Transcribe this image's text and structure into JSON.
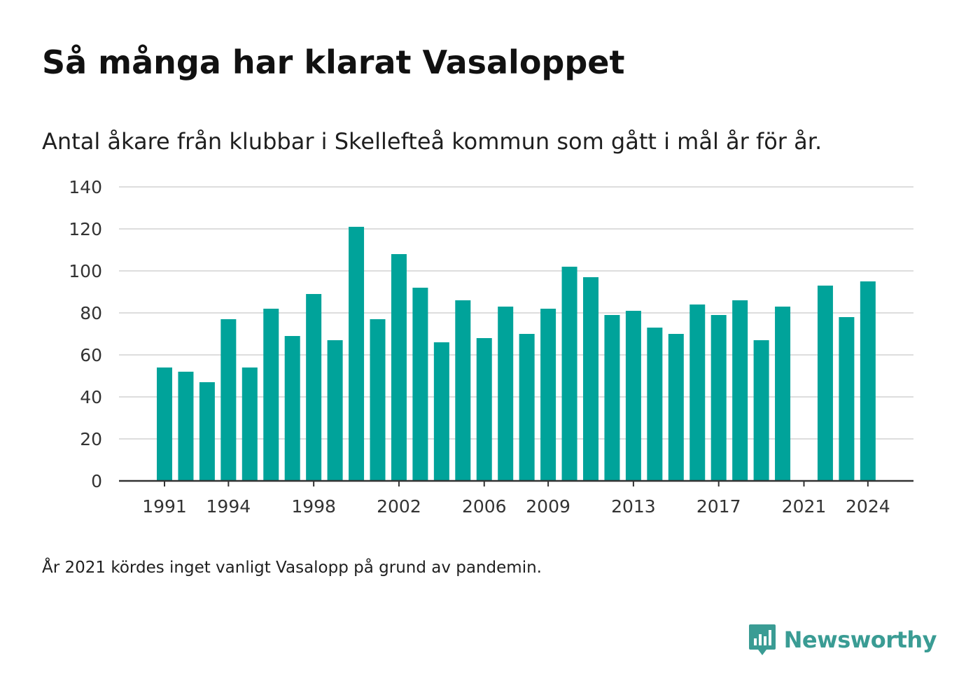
{
  "header": {
    "title": "Så många har klarat Vasaloppet",
    "subtitle": "Antal åkare från klubbar i Skellefteå kommun som gått i mål år för år."
  },
  "footnote": "År 2021 kördes inget vanligt Vasalopp på grund av pandemin.",
  "brand": {
    "name": "Newsworthy",
    "icon": "newsworthy-logo-icon",
    "color": "#3a9c94"
  },
  "colors": {
    "bar": "#00a39a",
    "grid": "#dddddd",
    "axis": "#333333",
    "tick_text": "#333333"
  },
  "chart_data": {
    "type": "bar",
    "title": "",
    "xlabel": "",
    "ylabel": "",
    "ylim": [
      0,
      140
    ],
    "yticks": [
      0,
      20,
      40,
      60,
      80,
      100,
      120,
      140
    ],
    "grid": true,
    "legend": "none",
    "categories": [
      "1991",
      "1992",
      "1993",
      "1994",
      "1995",
      "1996",
      "1997",
      "1998",
      "1999",
      "2000",
      "2001",
      "2002",
      "2003",
      "2004",
      "2005",
      "2006",
      "2007",
      "2008",
      "2009",
      "2010",
      "2011",
      "2012",
      "2013",
      "2014",
      "2015",
      "2016",
      "2017",
      "2018",
      "2019",
      "2020",
      "2021",
      "2022",
      "2023",
      "2024"
    ],
    "values": [
      54,
      52,
      47,
      77,
      54,
      82,
      69,
      89,
      67,
      121,
      77,
      108,
      92,
      66,
      86,
      68,
      83,
      70,
      82,
      102,
      97,
      79,
      81,
      73,
      70,
      84,
      79,
      86,
      67,
      83,
      0,
      93,
      78,
      95
    ],
    "xtick_labels": [
      "1991",
      "1994",
      "1998",
      "2002",
      "2006",
      "2009",
      "2013",
      "2017",
      "2021",
      "2024"
    ]
  }
}
